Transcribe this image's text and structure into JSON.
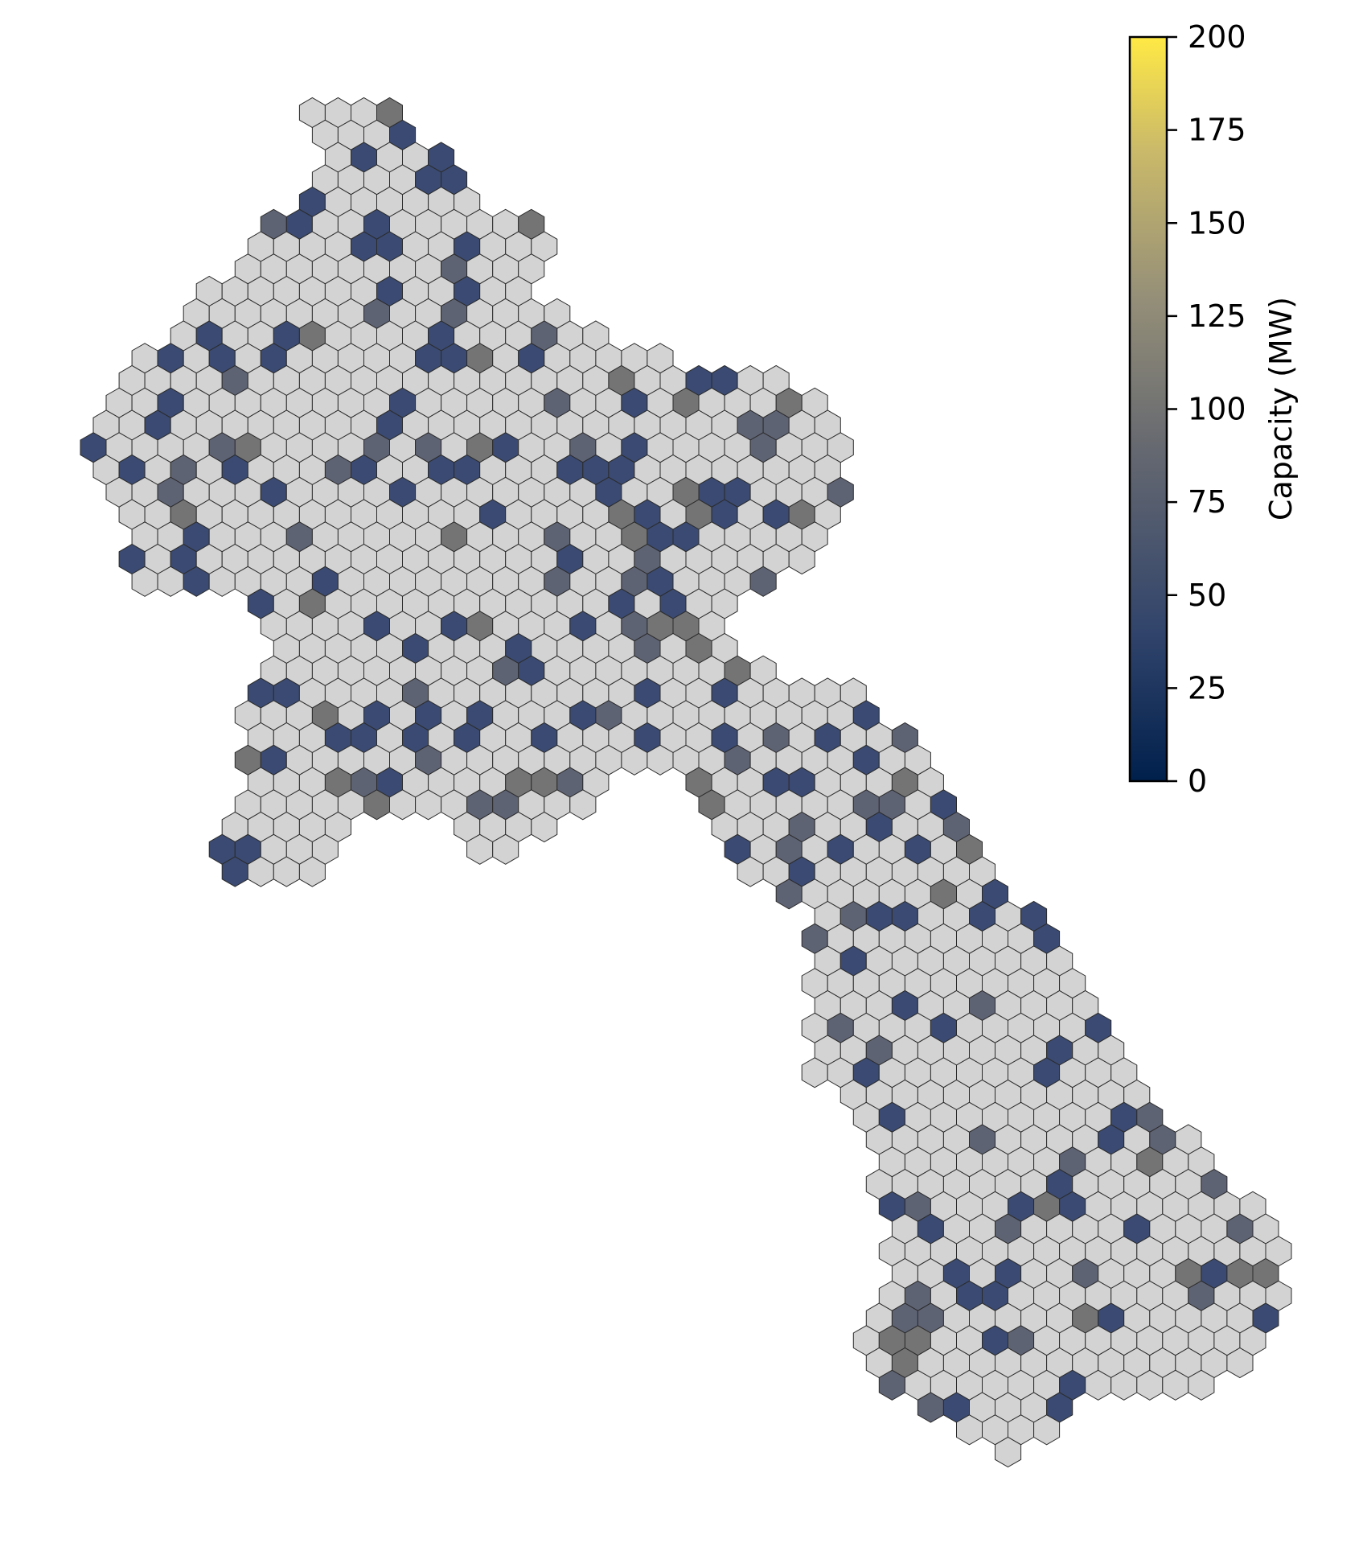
{
  "map": {
    "title": "",
    "region_shape": "hex grid map",
    "hex_stroke": "#2b2b2b",
    "no_data_color": "#d3d3d3"
  },
  "colorbar": {
    "label": "Capacity (MW)",
    "colormap": "cividis",
    "min": 0,
    "max": 200,
    "ticks": [
      {
        "value": 0,
        "label": "0"
      },
      {
        "value": 25,
        "label": "25"
      },
      {
        "value": 50,
        "label": "50"
      },
      {
        "value": 75,
        "label": "75"
      },
      {
        "value": 100,
        "label": "100"
      },
      {
        "value": 125,
        "label": "125"
      },
      {
        "value": 150,
        "label": "150"
      },
      {
        "value": 175,
        "label": "175"
      },
      {
        "value": 200,
        "label": "200"
      }
    ],
    "stops": [
      "#00204c",
      "#31446b",
      "#666970",
      "#958f78",
      "#cbba69",
      "#ffe945"
    ]
  },
  "chart_data": {
    "type": "heatmap",
    "description_units": "hex cells colored by capacity (MW); grey cells have no capacity",
    "value_categories": [
      {
        "name": "no capacity",
        "color": "#d3d3d3"
      },
      {
        "name": "~50 MW",
        "color": "#3a4a72"
      },
      {
        "name": "~80 MW",
        "color": "#5e6374"
      },
      {
        "name": "~100 MW",
        "color": "#747474"
      }
    ],
    "colorbar_range": [
      0,
      200
    ],
    "colorbar_label": "Capacity (MW)"
  }
}
